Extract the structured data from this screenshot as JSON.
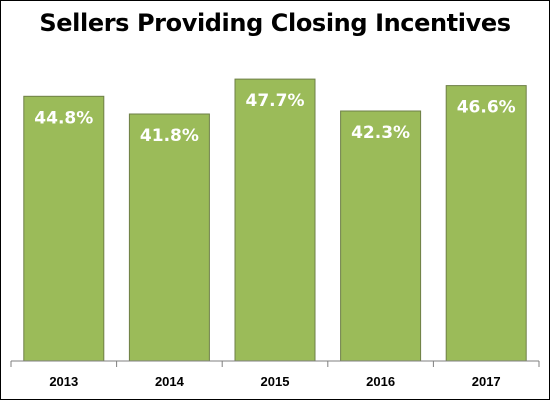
{
  "chart_data": {
    "type": "bar",
    "title": "Sellers Providing Closing Incentives",
    "xlabel": "",
    "ylabel": "",
    "categories": [
      "2013",
      "2014",
      "2015",
      "2016",
      "2017"
    ],
    "values": [
      44.8,
      41.8,
      47.7,
      42.3,
      46.6
    ],
    "data_labels": [
      "44.8%",
      "41.8%",
      "47.7%",
      "42.3%",
      "46.6%"
    ],
    "value_unit": "%",
    "ylim": [
      0,
      55
    ],
    "grid": false,
    "legend": "none",
    "colors": {
      "bar_fill": "#9BBB59",
      "bar_stroke": "#6E7F47",
      "axis": "#7F7F7F",
      "label": "#FFFFFF"
    }
  }
}
